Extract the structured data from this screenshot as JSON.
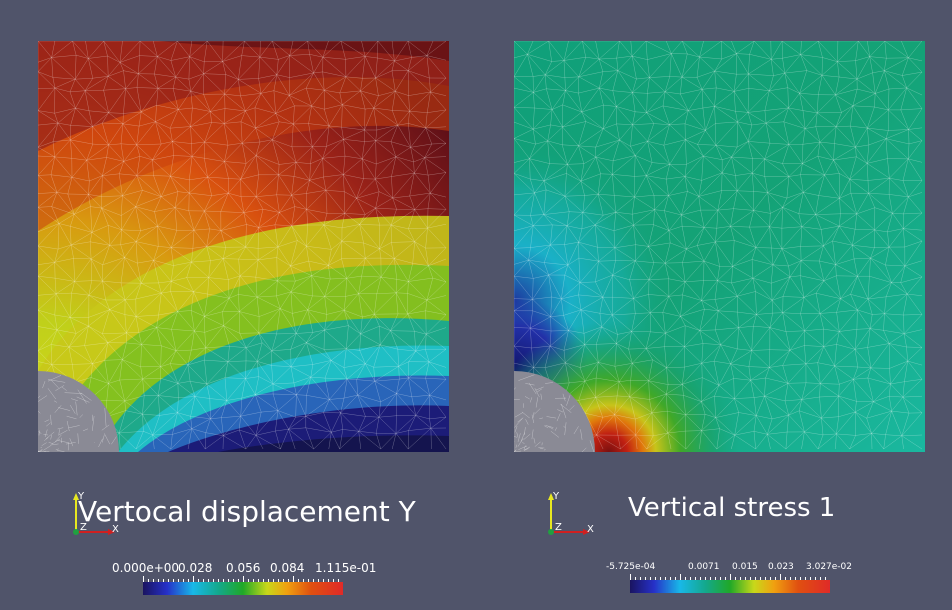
{
  "colors": {
    "background": "#50546a",
    "mesh_line": "#ffffff",
    "hole_fill": "#8a8a95"
  },
  "left_view": {
    "title": "Vertocal displacement Y",
    "colorbar": {
      "labels": [
        "0.000e+00",
        "0.028",
        "0.056",
        "0.084",
        "1.115e-01"
      ]
    },
    "axes": {
      "x": "X",
      "y": "Y",
      "z": "Z"
    }
  },
  "right_view": {
    "title": "Vertical stress 1",
    "colorbar": {
      "labels": [
        "-5.725e-04",
        "0.0071",
        "0.015",
        "0.023",
        "3.027e-02"
      ]
    },
    "axes": {
      "x": "X",
      "y": "Y",
      "z": "Z"
    }
  }
}
